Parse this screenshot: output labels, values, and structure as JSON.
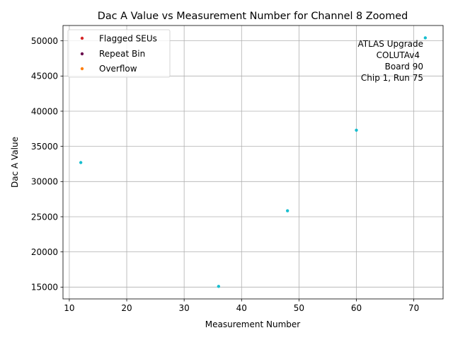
{
  "chart_data": {
    "type": "scatter",
    "title": "Dac A Value vs Measurement Number for Channel 8 Zoomed",
    "xlabel": "Measurement Number",
    "ylabel": "Dac A Value",
    "xlim": [
      8.9,
      75.1
    ],
    "ylim": [
      13320,
      52180
    ],
    "xticks": [
      10,
      20,
      30,
      40,
      50,
      60,
      70
    ],
    "yticks": [
      15000,
      20000,
      25000,
      30000,
      35000,
      40000,
      45000,
      50000
    ],
    "grid": true,
    "legend_position": "upper-left",
    "series": [
      {
        "color": "#17becf",
        "x": [
          12,
          36,
          48,
          60,
          72
        ],
        "y": [
          32700,
          15100,
          25850,
          37300,
          50420
        ]
      }
    ],
    "legend": [
      {
        "label": "Flagged SEUs",
        "color": "#d62728"
      },
      {
        "label": "Repeat Bin",
        "color": "#6b0f4f"
      },
      {
        "label": "Overflow",
        "color": "#ff7f0e"
      }
    ],
    "annotation": [
      "ATLAS Upgrade",
      "COLUTAv4",
      "Board 90",
      "Chip 1, Run 75"
    ]
  }
}
